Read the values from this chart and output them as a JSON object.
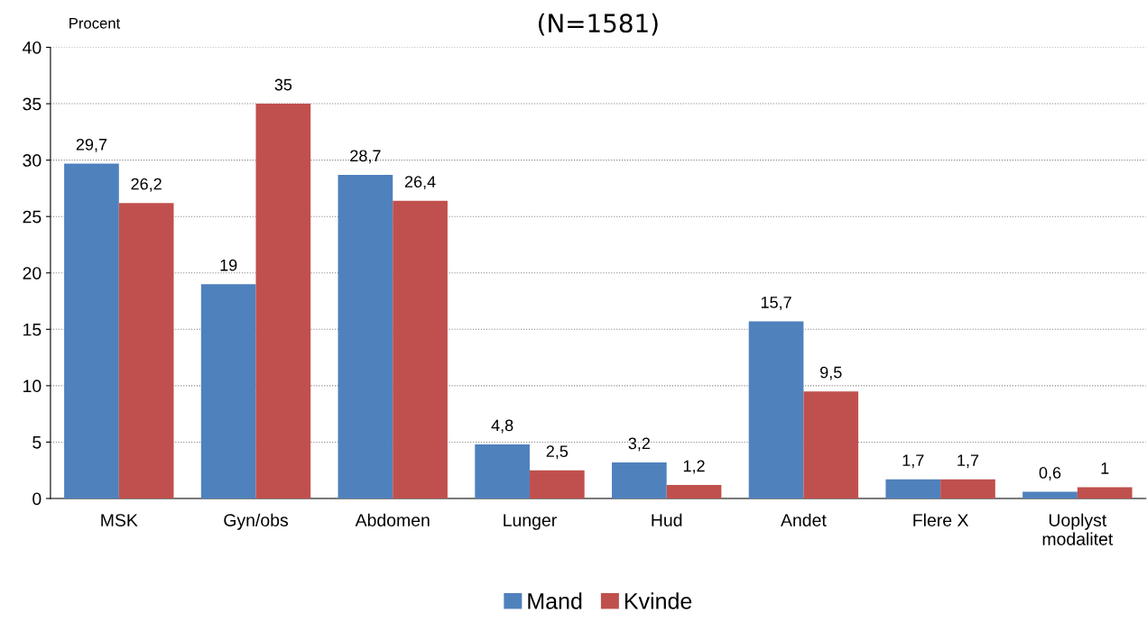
{
  "chart_data": {
    "type": "bar",
    "title": "(N=1581)",
    "ylabel": "Procent",
    "categories": [
      "MSK",
      "Gyn/obs",
      "Abdomen",
      "Lunger",
      "Hud",
      "Andet",
      "Flere X",
      "Uoplyst\nmodalitet"
    ],
    "series": [
      {
        "name": "Mand",
        "color": "#4f81bd",
        "values": [
          29.7,
          19,
          28.7,
          4.8,
          3.2,
          15.7,
          1.7,
          0.6
        ],
        "value_labels": [
          "29,7",
          "19",
          "28,7",
          "4,8",
          "3,2",
          "15,7",
          "1,7",
          "0,6"
        ]
      },
      {
        "name": "Kvinde",
        "color": "#c0504d",
        "values": [
          26.2,
          35,
          26.4,
          2.5,
          1.2,
          9.5,
          1.7,
          1
        ],
        "value_labels": [
          "26,2",
          "35",
          "26,4",
          "2,5",
          "1,2",
          "9,5",
          "1,7",
          "1"
        ]
      }
    ],
    "ylim": [
      0,
      40
    ],
    "yticks": [
      0,
      5,
      10,
      15,
      20,
      25,
      30,
      35,
      40
    ],
    "grid": "y",
    "legend": "bottom"
  }
}
